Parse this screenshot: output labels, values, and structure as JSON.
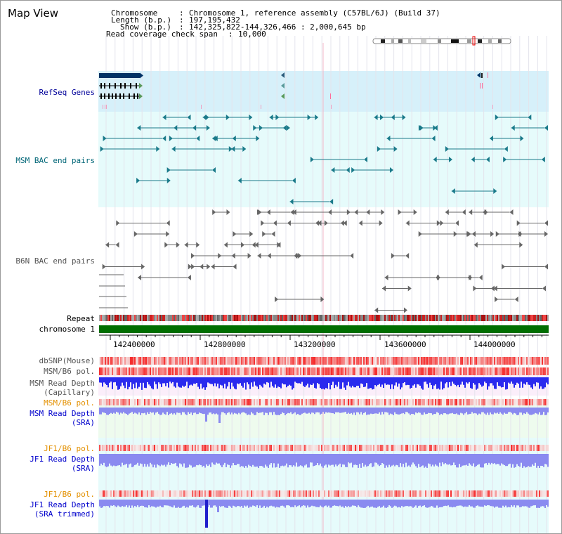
{
  "page": {
    "title": "Map View"
  },
  "info": {
    "chromosome_label": "Chromosome",
    "chromosome_value": "Chromosome 1, reference assembly (C57BL/6J) (Build 37)",
    "length_label": "Length (b.p.)",
    "length_value": "197,195,432",
    "show_label": "Show (b.p.)",
    "show_value": "142,325,822-144,326,466 : 2,000,645 bp",
    "coverage_label": "Read coverage check span",
    "coverage_value": "10,000"
  },
  "tracks": {
    "refseq": "RefSeq Genes",
    "msm_bac": "MSM BAC end pairs",
    "b6n_bac": "B6N BAC end pairs",
    "repeat": "Repeat",
    "chromosome": "chromosome 1",
    "dbsnp": "dbSNP(Mouse)",
    "msm_b6_pol": "MSM/B6 pol.",
    "msm_depth_cap_1": "MSM Read Depth",
    "msm_depth_cap_2": "(Capillary)",
    "msm_b6_pol_sra": "MSM/B6 pol.",
    "msm_depth_sra_1": "MSM Read Depth",
    "msm_depth_sra_2": "(SRA)",
    "jf1_b6_pol": "JF1/B6 pol.",
    "jf1_depth_sra_1": "JF1 Read Depth",
    "jf1_depth_sra_2": "(SRA)",
    "jf1_b6_pol_trim": "JF1/B6 pol.",
    "jf1_depth_trim_1": "JF1 Read Depth",
    "jf1_depth_trim_2": "(SRA trimmed)"
  },
  "axis": {
    "ticks": [
      "142400000",
      "142800000",
      "143200000",
      "143600000",
      "144000000"
    ]
  },
  "colors": {
    "refseq_bg": "#d6f0fa",
    "msm_bac_bg": "#e6fbfb",
    "chromosome_bar": "#006e00",
    "depth_blue": "#2a2aee",
    "depth_light": "#8a8af0",
    "pol_red": "#e83030",
    "highlight": "#ff6b9a"
  }
}
